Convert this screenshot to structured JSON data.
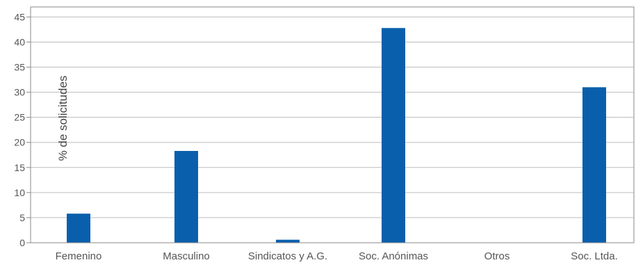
{
  "chart_data": {
    "type": "bar",
    "ylabel": "% de solicitudes",
    "categories": [
      "Femenino",
      "Masculino",
      "Sindicatos y A.G.",
      "Soc. Anónimas",
      "Otros",
      "Soc. Ltda."
    ],
    "values": [
      5.8,
      18.3,
      0.6,
      42.8,
      0,
      31
    ],
    "ylim": [
      0,
      47
    ],
    "yticks": [
      0,
      5,
      10,
      15,
      20,
      25,
      30,
      35,
      40,
      45
    ],
    "grid": true,
    "bar_color": "#0a5fad",
    "grid_color": "#bdbdbd"
  }
}
